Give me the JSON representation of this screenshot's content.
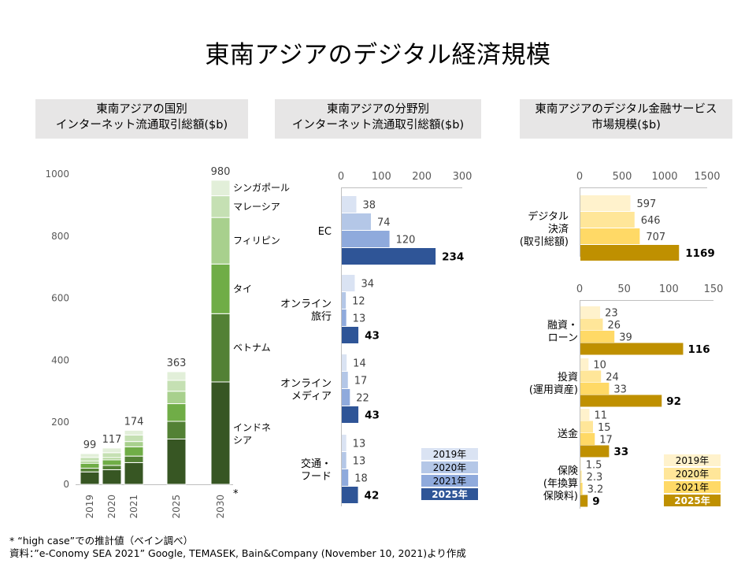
{
  "title": "東南アジアのデジタル経済規模",
  "panels": {
    "country": {
      "title_line1": "東南アジアの国別",
      "title_line2": "インターネット流通取引総額($b)"
    },
    "sector": {
      "title_line1": "東南アジアの分野別",
      "title_line2": "インターネット流通取引総額($b)"
    },
    "fintech": {
      "title_line1": "東南アジアのデジタル金融サービス",
      "title_line2": "市場規模($b)"
    }
  },
  "footnotes": {
    "note1": "* “high case”での推計値（ベイン調べ）",
    "note2": "資料：”e-Conomy SEA 2021” Google, TEMASEK, Bain&Company (November 10, 2021)より作成"
  },
  "colors": {
    "sg": "#e2efd9",
    "my": "#c5e0b3",
    "ph": "#a8d08d",
    "th": "#70ad47",
    "vn": "#538135",
    "id": "#375623",
    "blue_2019": "#dae3f3",
    "blue_2020": "#b4c7e7",
    "blue_2021": "#8faadc",
    "blue_2025": "#2f5597",
    "gold_2019": "#fff2cc",
    "gold_2020": "#ffe699",
    "gold_2021": "#ffd966",
    "gold_2025": "#bf9000"
  },
  "chart_data": [
    {
      "type": "bar",
      "stacked": true,
      "categories": [
        "2019",
        "2020",
        "2021",
        "2025",
        "2030"
      ],
      "category_marks": [
        "",
        "",
        "",
        "",
        "*"
      ],
      "ylim": [
        0,
        1000
      ],
      "yticks": [
        0,
        200,
        400,
        600,
        800,
        1000
      ],
      "totals": [
        99,
        117,
        174,
        363,
        980
      ],
      "series": [
        {
          "name": "インドネシア",
          "label_line1": "インドネ",
          "label_line2": "シア",
          "values": [
            40,
            47,
            70,
            146,
            330
          ],
          "color": "#375623"
        },
        {
          "name": "ベトナム",
          "values": [
            12,
            14,
            21,
            57,
            220
          ],
          "color": "#538135"
        },
        {
          "name": "タイ",
          "values": [
            16,
            18,
            30,
            57,
            160
          ],
          "color": "#70ad47"
        },
        {
          "name": "フィリピン",
          "values": [
            7,
            7,
            17,
            40,
            150
          ],
          "color": "#a8d08d"
        },
        {
          "name": "マレーシア",
          "values": [
            12,
            16,
            21,
            35,
            70
          ],
          "color": "#c5e0b3"
        },
        {
          "name": "シンガポール",
          "values": [
            12,
            15,
            15,
            28,
            50
          ],
          "color": "#e2efd9"
        }
      ]
    },
    {
      "type": "bar",
      "orientation": "horizontal",
      "xlim": [
        0,
        300
      ],
      "xticks": [
        0,
        100,
        200,
        300
      ],
      "categories": [
        "EC",
        "オンライン旅行",
        "オンラインメディア",
        "交通・フード"
      ],
      "category_labels": [
        [
          "EC"
        ],
        [
          "オンライン",
          "旅行"
        ],
        [
          "オンライン",
          "メディア"
        ],
        [
          "交通・",
          "フード"
        ]
      ],
      "series": [
        {
          "name": "2019年",
          "values": [
            38,
            34,
            14,
            13
          ],
          "color": "#dae3f3"
        },
        {
          "name": "2020年",
          "values": [
            74,
            12,
            17,
            13
          ],
          "color": "#b4c7e7"
        },
        {
          "name": "2021年",
          "values": [
            120,
            13,
            22,
            18
          ],
          "color": "#8faadc"
        },
        {
          "name": "2025年",
          "values": [
            234,
            43,
            43,
            42
          ],
          "color": "#2f5597"
        }
      ]
    },
    {
      "type": "bar",
      "orientation": "horizontal",
      "xlim": [
        0,
        1500
      ],
      "xticks": [
        0,
        500,
        1000,
        1500
      ],
      "categories": [
        "デジタル決済(取引総額)"
      ],
      "category_labels": [
        [
          "デジタル",
          "決済",
          "(取引総額)"
        ]
      ],
      "series": [
        {
          "name": "2019年",
          "values": [
            597
          ],
          "color": "#fff2cc"
        },
        {
          "name": "2020年",
          "values": [
            646
          ],
          "color": "#ffe699"
        },
        {
          "name": "2021年",
          "values": [
            707
          ],
          "color": "#ffd966"
        },
        {
          "name": "2025年",
          "values": [
            1169
          ],
          "color": "#bf9000"
        }
      ]
    },
    {
      "type": "bar",
      "orientation": "horizontal",
      "xlim": [
        0,
        150
      ],
      "xticks": [
        0,
        50,
        100,
        150
      ],
      "categories": [
        "融資・ローン",
        "投資(運用資産)",
        "送金",
        "保険(年換算保険料)"
      ],
      "category_labels": [
        [
          "融資・",
          "ローン"
        ],
        [
          "投資",
          "(運用資産)"
        ],
        [
          "送金"
        ],
        [
          "保険",
          "(年換算",
          "保険料)"
        ]
      ],
      "series": [
        {
          "name": "2019年",
          "values": [
            23,
            10,
            11,
            1.5
          ],
          "color": "#fff2cc"
        },
        {
          "name": "2020年",
          "values": [
            26,
            24,
            15,
            2.3
          ],
          "color": "#ffe699"
        },
        {
          "name": "2021年",
          "values": [
            39,
            33,
            17,
            3.2
          ],
          "color": "#ffd966"
        },
        {
          "name": "2025年",
          "values": [
            116,
            92,
            33,
            9
          ],
          "color": "#bf9000"
        }
      ]
    }
  ]
}
